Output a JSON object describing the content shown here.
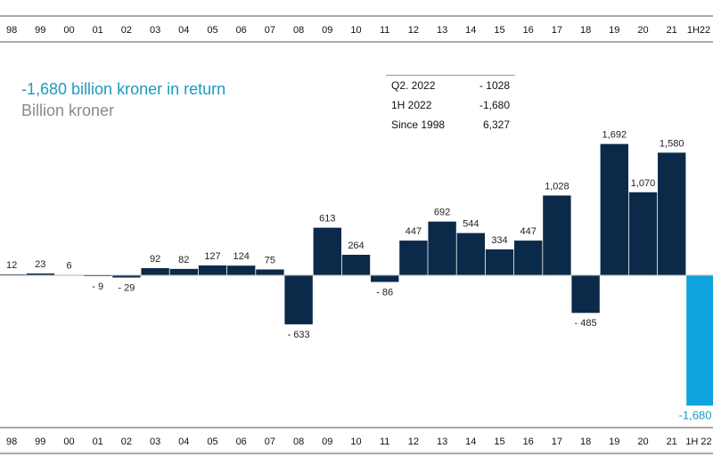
{
  "header": {
    "title": "-1,680 billion kroner in return",
    "subtitle": "Billion kroner"
  },
  "summary": [
    {
      "label": "Q2. 2022",
      "value": "- 1028"
    },
    {
      "label": "1H 2022",
      "value": "-1,680"
    },
    {
      "label": "Since 1998",
      "value": "6,327"
    }
  ],
  "colors": {
    "bar": "#0b2a4a",
    "highlight": "#0ea3dc",
    "highlight_label": "#1a9bbf",
    "axis": "#555555",
    "text": "#222222"
  },
  "chart_data": {
    "type": "bar",
    "title": "-1,680 billion kroner in return",
    "ylabel": "Billion kroner",
    "categories": [
      "98",
      "99",
      "00",
      "01",
      "02",
      "03",
      "04",
      "05",
      "06",
      "07",
      "08",
      "09",
      "10",
      "11",
      "12",
      "13",
      "14",
      "15",
      "16",
      "17",
      "18",
      "19",
      "20",
      "21",
      "1H22"
    ],
    "bottom_categories": [
      "98",
      "99",
      "00",
      "01",
      "02",
      "03",
      "04",
      "05",
      "06",
      "07",
      "08",
      "09",
      "10",
      "11",
      "12",
      "13",
      "14",
      "15",
      "16",
      "17",
      "18",
      "19",
      "20",
      "21",
      "1H 22"
    ],
    "values": [
      12,
      23,
      6,
      -9,
      -29,
      92,
      82,
      127,
      124,
      75,
      -633,
      613,
      264,
      -86,
      447,
      692,
      544,
      334,
      447,
      1028,
      -485,
      1692,
      1070,
      1580,
      -1680
    ],
    "labels": [
      "12",
      "23",
      "6",
      "- 9",
      "- 29",
      "92",
      "82",
      "127",
      "124",
      "75",
      "- 633",
      "613",
      "264",
      "- 86",
      "447",
      "692",
      "544",
      "334",
      "447",
      "1,028",
      "- 485",
      "1,692",
      "1,070",
      "1,580",
      "-1,680"
    ],
    "highlight_index": 24,
    "grid": false,
    "legend": "none"
  }
}
